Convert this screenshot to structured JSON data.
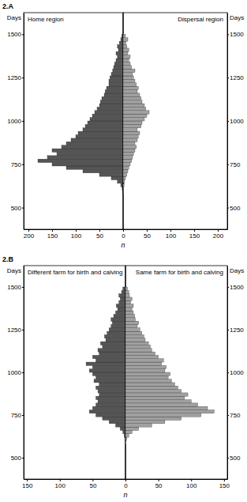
{
  "chart_data": [
    {
      "type": "histogram",
      "orientation": "horizontal",
      "annotations": [
        "2.A"
      ],
      "title": "Home region",
      "x_label": "n",
      "y_label": "Days",
      "bins": [
        540,
        560,
        580,
        600,
        620,
        640,
        660,
        680,
        700,
        720,
        740,
        760,
        780,
        800,
        820,
        840,
        860,
        880,
        900,
        920,
        940,
        960,
        980,
        1000,
        1020,
        1040,
        1060,
        1080,
        1100,
        1120,
        1140,
        1160,
        1180,
        1200,
        1220,
        1240,
        1260,
        1280,
        1300,
        1320,
        1340,
        1360,
        1380,
        1400,
        1420,
        1440,
        1460,
        1480,
        1500
      ],
      "values": [
        0,
        0,
        1,
        2,
        5,
        12,
        25,
        50,
        85,
        120,
        150,
        180,
        160,
        140,
        150,
        130,
        120,
        110,
        100,
        95,
        85,
        80,
        75,
        70,
        65,
        60,
        55,
        50,
        48,
        45,
        40,
        38,
        35,
        30,
        30,
        28,
        25,
        22,
        20,
        18,
        15,
        12,
        15,
        10,
        12,
        8,
        5,
        3
      ],
      "color": "#555555",
      "xlim": [
        210,
        0
      ],
      "xticks": [
        200,
        150,
        100,
        50,
        0
      ],
      "ylim": [
        375,
        1625
      ],
      "yticks": [
        500,
        750,
        1000,
        1250,
        1500
      ]
    },
    {
      "type": "histogram",
      "orientation": "horizontal",
      "title": "Dispersal region",
      "y_label": "Days",
      "bins": [
        540,
        560,
        580,
        600,
        620,
        640,
        660,
        680,
        700,
        720,
        740,
        760,
        780,
        800,
        820,
        840,
        860,
        880,
        900,
        920,
        940,
        960,
        980,
        1000,
        1020,
        1040,
        1060,
        1080,
        1100,
        1120,
        1140,
        1160,
        1180,
        1200,
        1220,
        1240,
        1260,
        1280,
        1300,
        1320,
        1340,
        1360,
        1380,
        1400,
        1420,
        1440,
        1460,
        1480,
        1500
      ],
      "values": [
        0,
        0,
        1,
        1,
        2,
        3,
        5,
        8,
        10,
        12,
        15,
        18,
        20,
        22,
        25,
        28,
        25,
        30,
        32,
        35,
        30,
        38,
        40,
        45,
        50,
        55,
        48,
        45,
        40,
        38,
        35,
        30,
        32,
        28,
        25,
        22,
        20,
        25,
        18,
        15,
        12,
        15,
        10,
        12,
        8,
        6,
        10,
        5
      ],
      "color": "#a0a0a0",
      "xlim": [
        0,
        220
      ],
      "xticks": [
        50,
        100,
        150,
        200
      ],
      "ylim": [
        375,
        1625
      ],
      "yticks": [
        500,
        750,
        1000,
        1250,
        1500
      ]
    },
    {
      "type": "histogram",
      "orientation": "horizontal",
      "annotations": [
        "2.B"
      ],
      "title": "Different farm for birth and calving",
      "x_label": "n",
      "y_label": "Days",
      "bins": [
        540,
        560,
        580,
        600,
        620,
        640,
        660,
        680,
        700,
        720,
        740,
        760,
        780,
        800,
        820,
        840,
        860,
        880,
        900,
        920,
        940,
        960,
        980,
        1000,
        1020,
        1040,
        1060,
        1080,
        1100,
        1120,
        1140,
        1160,
        1180,
        1200,
        1220,
        1240,
        1260,
        1280,
        1300,
        1320,
        1340,
        1360,
        1380,
        1400,
        1420,
        1440,
        1460,
        1480,
        1500
      ],
      "values": [
        0,
        0,
        0,
        1,
        2,
        4,
        8,
        15,
        25,
        35,
        45,
        55,
        50,
        45,
        42,
        45,
        40,
        42,
        45,
        40,
        48,
        45,
        50,
        55,
        50,
        60,
        45,
        50,
        40,
        42,
        35,
        38,
        30,
        32,
        28,
        25,
        22,
        20,
        22,
        18,
        15,
        12,
        14,
        10,
        8,
        10,
        6,
        4
      ],
      "color": "#555555",
      "xlim": [
        155,
        0
      ],
      "xticks": [
        150,
        100,
        50,
        0
      ],
      "ylim": [
        375,
        1625
      ],
      "yticks": [
        500,
        750,
        1000,
        1250,
        1500
      ]
    },
    {
      "type": "histogram",
      "orientation": "horizontal",
      "title": "Same farm for birth and calving",
      "y_label": "Days",
      "bins": [
        540,
        560,
        580,
        600,
        620,
        640,
        660,
        680,
        700,
        720,
        740,
        760,
        780,
        800,
        820,
        840,
        860,
        880,
        900,
        920,
        940,
        960,
        980,
        1000,
        1020,
        1040,
        1060,
        1080,
        1100,
        1120,
        1140,
        1160,
        1180,
        1200,
        1220,
        1240,
        1260,
        1280,
        1300,
        1320,
        1340,
        1360,
        1380,
        1400,
        1420,
        1440,
        1460,
        1480,
        1500
      ],
      "values": [
        0,
        0,
        1,
        2,
        5,
        10,
        20,
        40,
        60,
        85,
        115,
        135,
        125,
        110,
        100,
        90,
        95,
        85,
        80,
        75,
        70,
        65,
        68,
        60,
        62,
        55,
        58,
        50,
        45,
        40,
        38,
        35,
        30,
        28,
        25,
        22,
        18,
        20,
        15,
        14,
        12,
        10,
        12,
        8,
        10,
        6,
        5,
        3
      ],
      "color": "#a0a0a0",
      "xlim": [
        0,
        155
      ],
      "xticks": [
        50,
        100,
        150
      ],
      "ylim": [
        375,
        1625
      ],
      "yticks": [
        500,
        750,
        1000,
        1250,
        1500
      ]
    }
  ]
}
